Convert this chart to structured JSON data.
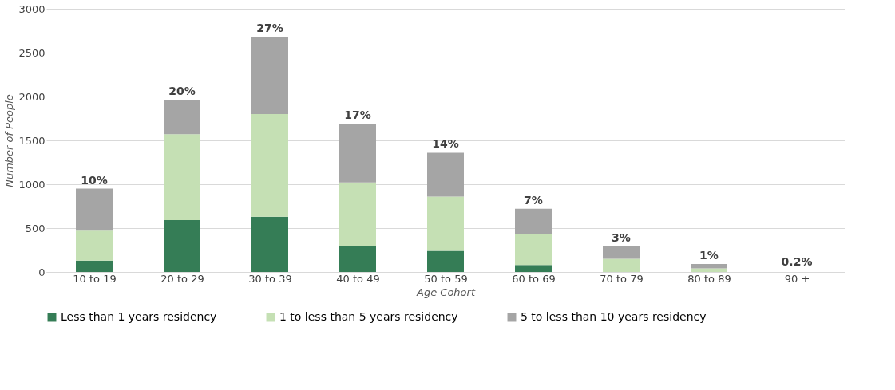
{
  "chart_data": {
    "type": "bar",
    "stacked": true,
    "xlabel": "Age Cohort",
    "ylabel": "Number of People",
    "categories": [
      "10 to 19",
      "20 to 29",
      "30 to 39",
      "40 to 49",
      "50 to 59",
      "60 to 69",
      "70 to 79",
      "80 to 89",
      "90 +"
    ],
    "series": [
      {
        "name": "Less than 1 years residency",
        "color": "#357d56",
        "values": [
          130,
          590,
          630,
          290,
          240,
          80,
          0,
          0,
          0
        ]
      },
      {
        "name": "1 to less than 5 years residency",
        "color": "#c5e0b4",
        "values": [
          340,
          980,
          1170,
          730,
          620,
          350,
          150,
          40,
          null
        ]
      },
      {
        "name": "5 to less than 10 years residency",
        "color": "#a5a5a5",
        "values": [
          480,
          390,
          880,
          670,
          500,
          290,
          140,
          50,
          null
        ]
      }
    ],
    "annotations": [
      {
        "text": "10%",
        "x": "10 to 19",
        "y": 950
      },
      {
        "text": "20%",
        "x": "20 to 29",
        "y": 1960
      },
      {
        "text": "27%",
        "x": "30 to 39",
        "y": 2680
      },
      {
        "text": "17%",
        "x": "40 to 49",
        "y": 1690
      },
      {
        "text": "14%",
        "x": "50 to 59",
        "y": 1360
      },
      {
        "text": "7%",
        "x": "60 to 69",
        "y": 720
      },
      {
        "text": "3%",
        "x": "70 to 79",
        "y": 290
      },
      {
        "text": "1%",
        "x": "80 to 89",
        "y": 90
      },
      {
        "text": "0.2%",
        "x": "90 +",
        "y": 20
      }
    ],
    "ylim": [
      0,
      3000
    ],
    "yticks": [
      0,
      500,
      1000,
      1500,
      2000,
      2500,
      3000
    ],
    "grid": "y",
    "legend": "bottom"
  }
}
